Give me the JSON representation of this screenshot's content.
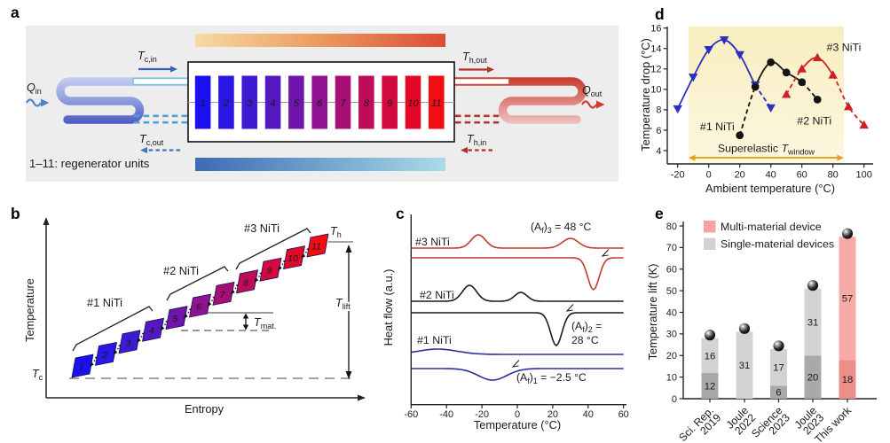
{
  "figure": {
    "panels": {
      "a": "a",
      "b": "b",
      "c": "c",
      "d": "d",
      "e": "e"
    }
  },
  "regenerator_units": {
    "numbers": [
      "1",
      "2",
      "3",
      "4",
      "5",
      "6",
      "7",
      "8",
      "9",
      "10",
      "11"
    ],
    "colors": [
      "#1a10ef",
      "#2b17e4",
      "#3f1ad3",
      "#5418c1",
      "#6f15ab",
      "#8f1290",
      "#a80f74",
      "#bf0c59",
      "#d20a3f",
      "#e30827",
      "#f20d13"
    ]
  },
  "panel_a": {
    "caption": "1–11: regenerator units",
    "q_in": {
      "main": "Q",
      "sub": "in"
    },
    "q_out": {
      "main": "Q",
      "sub": "out"
    },
    "t_c_in": {
      "main": "T",
      "sub": "c,in"
    },
    "t_c_out": {
      "main": "T",
      "sub": "c,out"
    },
    "t_h_out": {
      "main": "T",
      "sub": "h,out"
    },
    "t_h_in": {
      "main": "T",
      "sub": "h,in"
    },
    "colors": {
      "hot_gradient": [
        "#f6dba3",
        "#eb9a5e",
        "#dc4c36"
      ],
      "cold_gradient": [
        "#3b6cb5",
        "#6fa3cc",
        "#aadbe8"
      ],
      "cold_pipe": "#82c0e6",
      "cold_dash": "#4f9fd6",
      "hot_pipe": "#cc4538",
      "hot_dash": "#b5372e",
      "q_in_blue": "#4a86c8",
      "q_out_red": "#cf3a2c"
    }
  },
  "panel_b": {
    "xlabel": "Entropy",
    "ylabel": "Temperature",
    "t_c": {
      "main": "T",
      "sub": "c"
    },
    "t_h": {
      "main": "T",
      "sub": "h"
    },
    "t_lift": {
      "main": "T",
      "sub": "lift"
    },
    "t_mat": {
      "main": "T",
      "sub": "mat."
    },
    "groups": [
      {
        "label": "#1 NiTi",
        "units": "1-4"
      },
      {
        "label": "#2 NiTi",
        "units": "5-7"
      },
      {
        "label": "#3 NiTi",
        "units": "8-11"
      }
    ]
  },
  "chart_data": [
    {
      "id": "dsc",
      "type": "line",
      "panel": "c",
      "xlabel": "Temperature (°C)",
      "ylabel": "Heat flow (a.u.)",
      "xlim": [
        -60,
        60
      ],
      "xticks": [
        -60,
        -40,
        -20,
        0,
        20,
        40,
        60
      ],
      "series": [
        {
          "name": "#3 NiTi",
          "color": "#c23b2e",
          "af_c": 48,
          "heating_peaks_c": [
            -22,
            30
          ],
          "cooling_valley_c": 43,
          "curves": [
            {
              "base": 55,
              "bumps": [
                {
                  "c": -22,
                  "h": 15,
                  "s": 4
                },
                {
                  "c": 30,
                  "h": 11,
                  "s": 4.5
                }
              ]
            },
            {
              "base": 66,
              "bumps": [
                {
                  "c": 43,
                  "h": -36,
                  "s": 3.2
                }
              ]
            }
          ],
          "af_label_lines": [
            [
              [
                "(A",
                "n"
              ],
              [
                "f",
                "s"
              ],
              [
                ")",
                "n"
              ],
              [
                "3",
                "s"
              ],
              [
                " = 48 °C",
                "n"
              ]
            ]
          ]
        },
        {
          "name": "#2 NiTi",
          "color": "#1c1c1c",
          "af_c": 28,
          "heating_peaks_c": [
            -27,
            2
          ],
          "cooling_valley_c": 22,
          "curves": [
            {
              "base": 115,
              "bumps": [
                {
                  "c": -27,
                  "h": 18,
                  "s": 4
                },
                {
                  "c": 2,
                  "h": 10,
                  "s": 3.5
                }
              ]
            },
            {
              "base": 128,
              "bumps": [
                {
                  "c": 22,
                  "h": -37,
                  "s": 3.2
                }
              ]
            }
          ],
          "af_label_lines": [
            [
              [
                "(A",
                "n"
              ],
              [
                "f",
                "s"
              ],
              [
                ")",
                "n"
              ],
              [
                "2",
                "s"
              ],
              [
                " =",
                "n"
              ]
            ],
            [
              [
                "28 °C",
                "n"
              ]
            ]
          ]
        },
        {
          "name": "#1 NiTi",
          "color": "#2a2f9e",
          "af_c": -2.5,
          "heating_peaks_c": [
            -45
          ],
          "cooling_valley_c": -14,
          "curves": [
            {
              "base": 175,
              "bumps": [
                {
                  "c": -45,
                  "h": 6,
                  "s": 11
                }
              ]
            },
            {
              "base": 191,
              "bumps": [
                {
                  "c": -14,
                  "h": -13,
                  "s": 8
                }
              ]
            }
          ],
          "af_label_lines": [
            [
              [
                "(A",
                "n"
              ],
              [
                "f",
                "s"
              ],
              [
                ")",
                "n"
              ],
              [
                "1",
                "s"
              ],
              [
                " = −2.5 °C",
                "n"
              ]
            ]
          ]
        }
      ]
    },
    {
      "id": "tdrop",
      "type": "scatter",
      "panel": "d",
      "xlabel": "Ambient temperature (°C)",
      "ylabel": "Temperature drop (°C)",
      "xticks": [
        -20,
        0,
        20,
        40,
        60,
        80,
        100
      ],
      "yticks": [
        4,
        6,
        8,
        10,
        12,
        14,
        16
      ],
      "window": {
        "x0": -13,
        "x1": 87,
        "fill_top": "#f8eec0",
        "fill_bottom": "#fcf7e0",
        "arrow_color": "#d9a41f",
        "arrow_y": 3.3,
        "label_y": 3.85,
        "label_parts": [
          [
            "Superelastic ",
            "n"
          ],
          [
            "T",
            "i"
          ],
          [
            "window",
            "s"
          ]
        ]
      },
      "series": [
        {
          "name": "#1 NiTi",
          "color": "#2a2fc0",
          "marker": "triangle-down",
          "points": [
            [
              -20,
              8.1
            ],
            [
              -10,
              11.2
            ],
            [
              0,
              13.9
            ],
            [
              10,
              14.85
            ],
            [
              20,
              13.4
            ],
            [
              30,
              10.45
            ],
            [
              40,
              8.2
            ]
          ],
          "solid_range": [
            0,
            5
          ],
          "label_xy": [
            5.5,
            6.0
          ]
        },
        {
          "name": "#2 NiTi",
          "color": "#141414",
          "marker": "circle",
          "points": [
            [
              20,
              5.5
            ],
            [
              30,
              10.25
            ],
            [
              40,
              12.65
            ],
            [
              50,
              11.65
            ],
            [
              60,
              10.7
            ],
            [
              70,
              9.0
            ]
          ],
          "solid_range": [
            1,
            4
          ],
          "label_xy": [
            68,
            6.55
          ]
        },
        {
          "name": "#3 NiTi",
          "color": "#cc2222",
          "marker": "triangle-up",
          "points": [
            [
              50,
              9.5
            ],
            [
              60,
              12.0
            ],
            [
              70,
              13.1
            ],
            [
              80,
              11.4
            ],
            [
              90,
              8.3
            ],
            [
              100,
              6.5
            ]
          ],
          "solid_range": [
            1,
            3
          ],
          "label_xy": [
            87,
            13.75
          ]
        }
      ]
    },
    {
      "id": "tlift",
      "type": "stacked-bar",
      "panel": "e",
      "ylabel": "Temperature lift (K)",
      "ylim": [
        0,
        82
      ],
      "yticks": [
        0,
        10,
        20,
        30,
        40,
        50,
        60,
        70,
        80
      ],
      "legend": [
        {
          "label": "Multi-material device",
          "color": "#f5a3a0"
        },
        {
          "label": "Single-material devices",
          "color": "#d2d2d2"
        }
      ],
      "bars": [
        {
          "category_lines": [
            "Sci. Rep.",
            "2019"
          ],
          "total": 28,
          "segments": [
            {
              "value": 12,
              "color": "#a9a9a9"
            },
            {
              "value": 16,
              "color": "#d3d3d3"
            }
          ]
        },
        {
          "category_lines": [
            "Joule",
            "2022"
          ],
          "total": 31,
          "segments": [
            {
              "value": 31,
              "color": "#d3d3d3"
            }
          ]
        },
        {
          "category_lines": [
            "Science",
            "2023"
          ],
          "total": 23,
          "segments": [
            {
              "value": 6,
              "color": "#a9a9a9"
            },
            {
              "value": 17,
              "color": "#d3d3d3"
            }
          ]
        },
        {
          "category_lines": [
            "Joule",
            "2023"
          ],
          "total": 51,
          "segments": [
            {
              "value": 20,
              "color": "#a9a9a9"
            },
            {
              "value": 31,
              "color": "#d3d3d3"
            }
          ]
        },
        {
          "category_lines": [
            "This work"
          ],
          "total": 75,
          "segments": [
            {
              "value": 18,
              "color": "#ee8e8a"
            },
            {
              "value": 57,
              "color": "#f7aaa7"
            }
          ]
        }
      ]
    }
  ]
}
